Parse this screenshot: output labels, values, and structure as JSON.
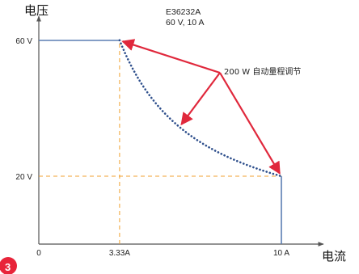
{
  "chart_data": {
    "type": "line",
    "model_name": "E36232A",
    "model_rating": "60 V, 10 A",
    "ylabel": "电压",
    "xlabel": "电流",
    "x_tick_labels": [
      "0",
      "3.33A",
      "10 A"
    ],
    "x_ticks": [
      0,
      3.33,
      10
    ],
    "y_tick_labels": [
      "60 V",
      "20 V"
    ],
    "y_ticks": [
      60,
      20
    ],
    "xlim": [
      0,
      12.5
    ],
    "ylim": [
      0,
      68
    ],
    "grid": false,
    "series": [
      {
        "style": "solid",
        "color": "#5b7fb3",
        "points": [
          [
            0,
            60
          ],
          [
            3.33,
            60
          ]
        ]
      },
      {
        "style": "dotted",
        "color": "#2e4f8c",
        "power_w": 200,
        "x_range": [
          3.33,
          10
        ]
      },
      {
        "style": "solid",
        "color": "#5b7fb3",
        "points": [
          [
            10,
            20
          ],
          [
            10,
            0
          ]
        ]
      }
    ],
    "reference_lines": {
      "color": "#f0a030",
      "lines": [
        {
          "from": [
            0,
            20
          ],
          "to": [
            10,
            20
          ]
        },
        {
          "from": [
            3.33,
            0
          ],
          "to": [
            3.33,
            60
          ]
        }
      ]
    },
    "annotation": {
      "text": "200 W 自动量程调节",
      "color": "#e0283c",
      "targets": [
        [
          3.33,
          60
        ],
        [
          5.8,
          34.5
        ],
        [
          10,
          20
        ]
      ]
    },
    "badge": {
      "text": "3",
      "color": "#e8243a"
    }
  }
}
